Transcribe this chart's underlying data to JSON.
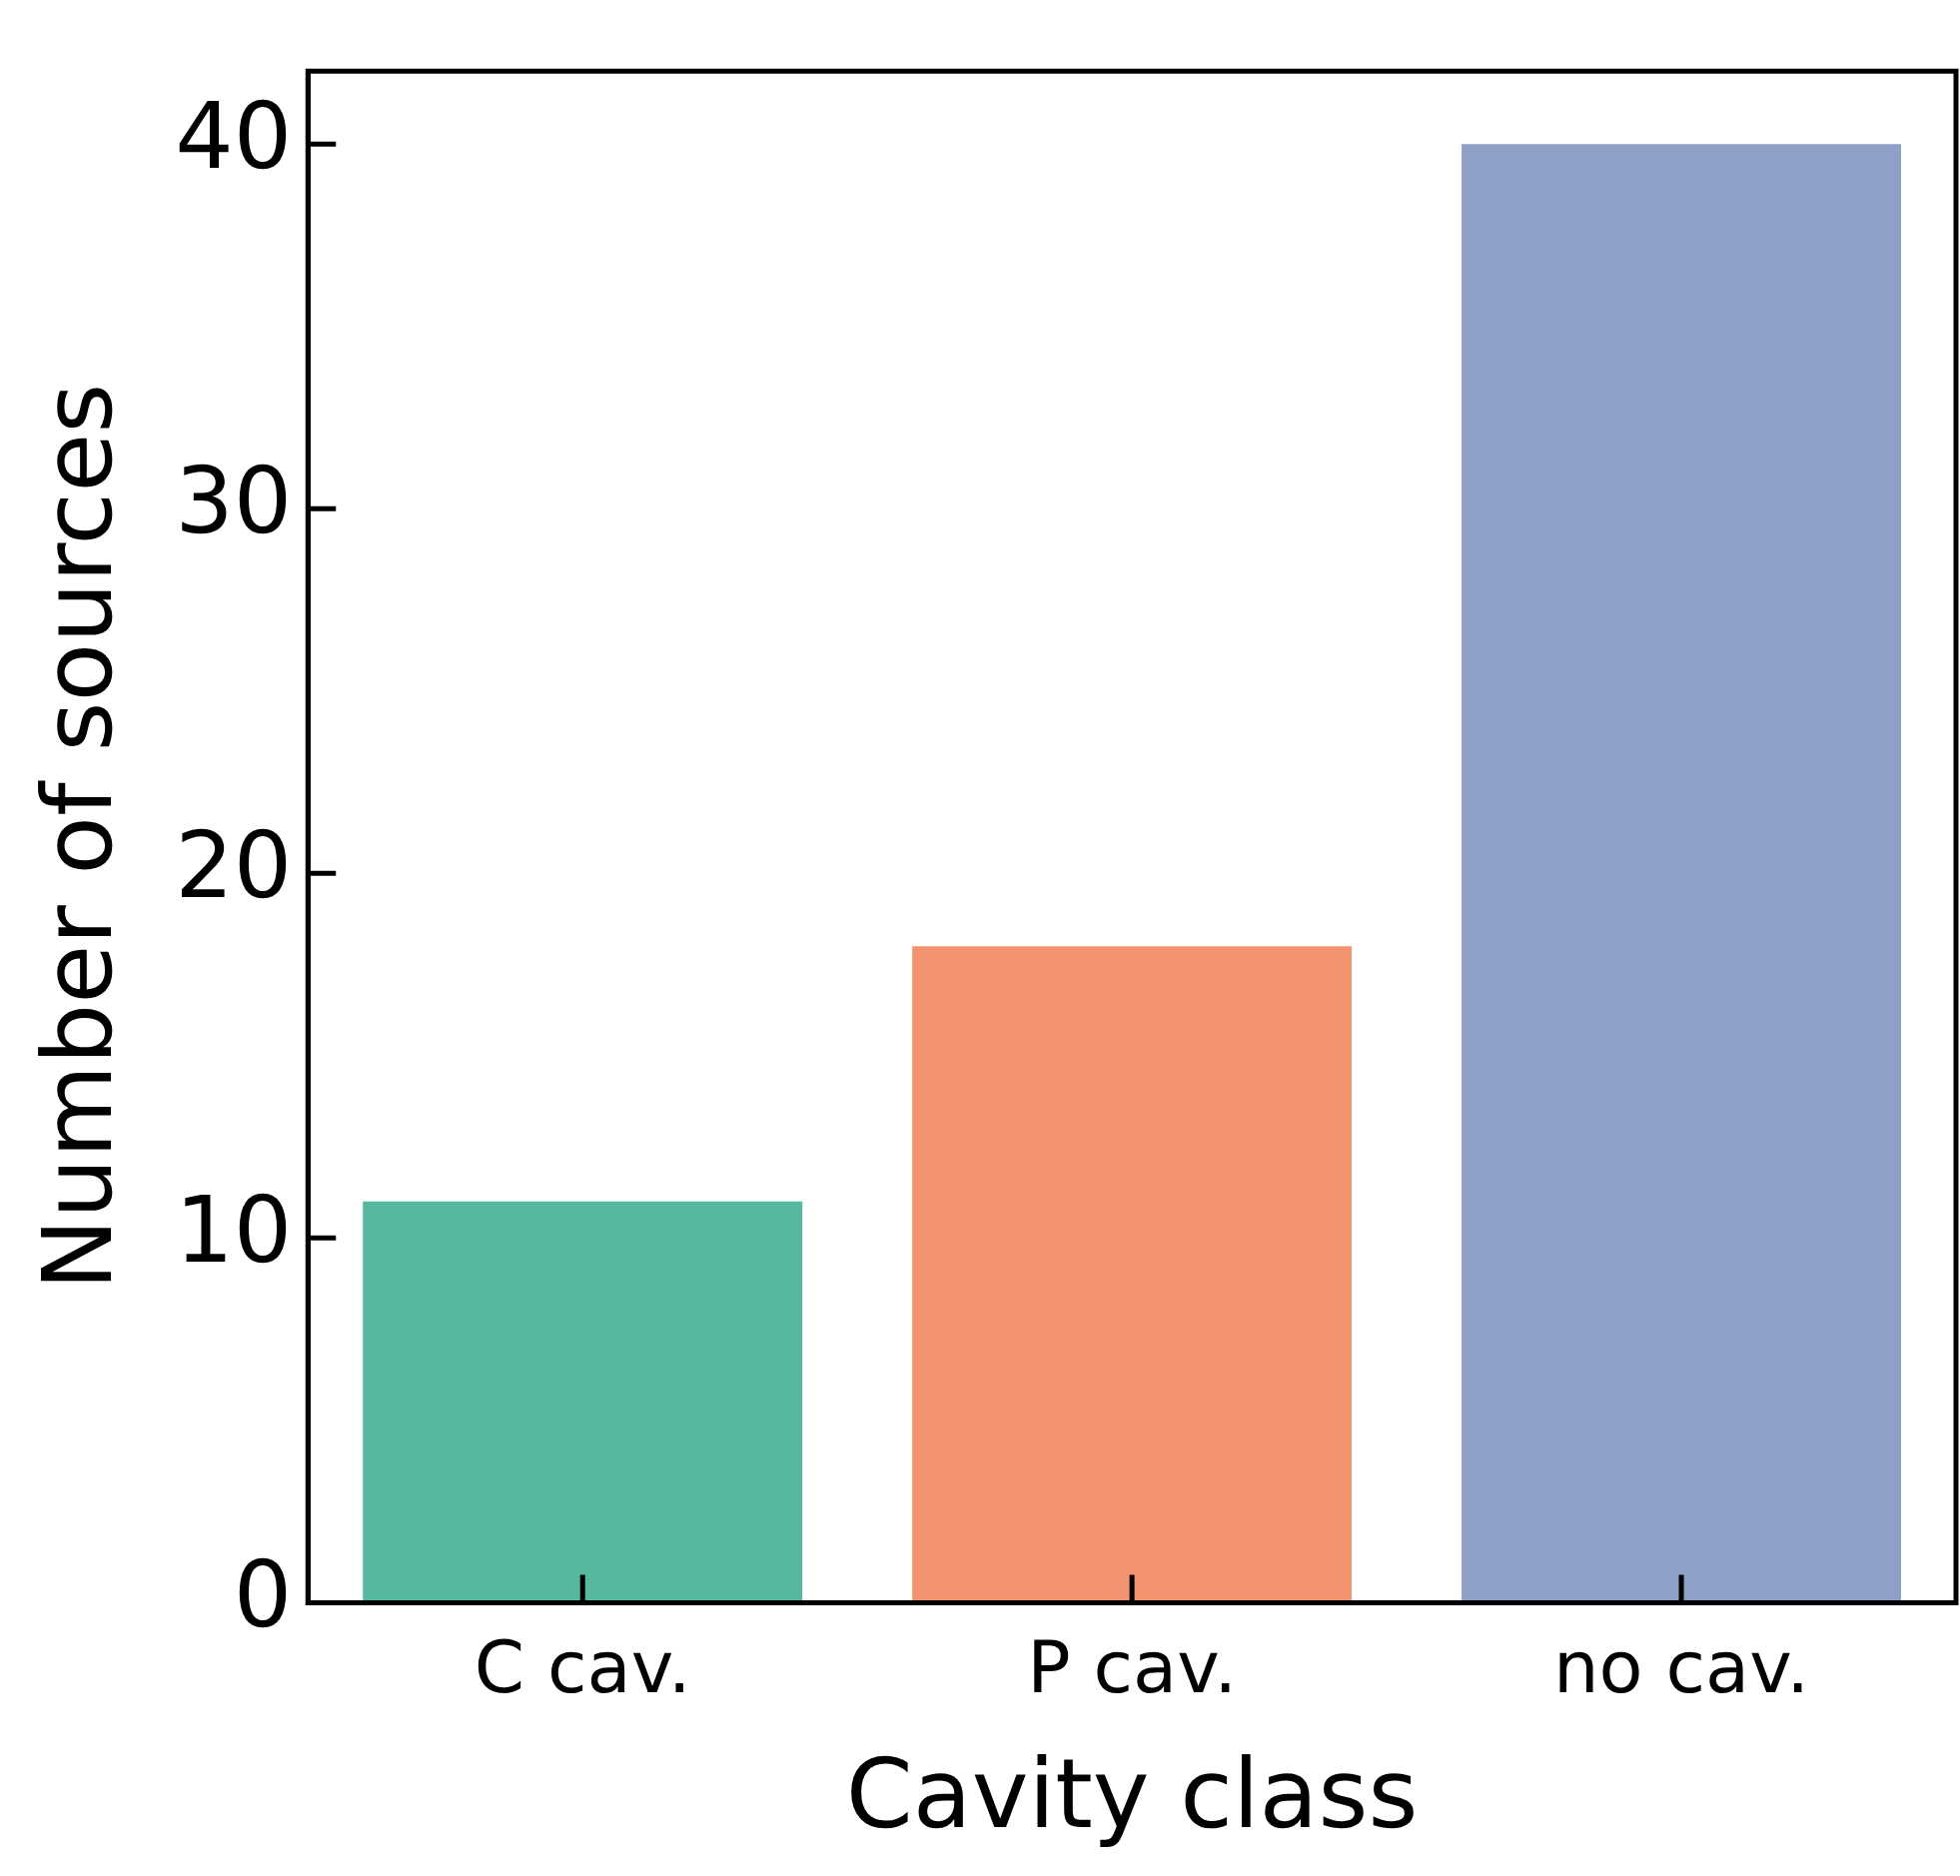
{
  "chart_data": {
    "type": "bar",
    "xlabel": "Cavity class",
    "ylabel": "Number of sources",
    "categories": [
      "C cav.",
      "P cav.",
      "no cav."
    ],
    "values": [
      11,
      18,
      40
    ],
    "colors": [
      "#57b8a0",
      "#f2946f",
      "#8ea0c8"
    ],
    "ylim": [
      0,
      42
    ],
    "yticks": [
      0,
      10,
      20,
      30,
      40
    ],
    "grid": false,
    "legend": false
  }
}
